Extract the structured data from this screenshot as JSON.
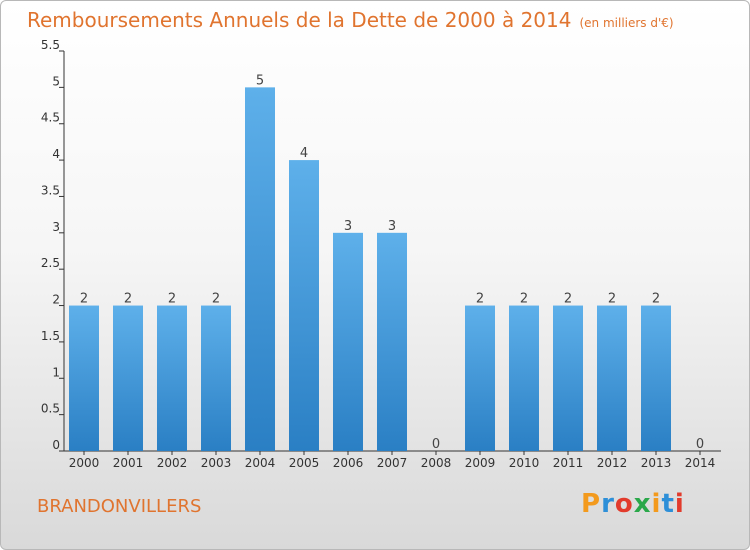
{
  "title": "Remboursements Annuels de la Dette de 2000 à 2014",
  "unit": "(en milliers d'€)",
  "caption": "BRANDONVILLERS",
  "logo_text": "Proxiti",
  "colors": {
    "title": "#e0742f",
    "bar_top": "#5eb0ea",
    "bar_bottom": "#2a7fc4",
    "logo": [
      "#f39a1d",
      "#2d8fd8",
      "#e23b2c",
      "#2aa84a",
      "#f39a1d",
      "#2d8fd8",
      "#e23b2c"
    ]
  },
  "chart_data": {
    "type": "bar",
    "categories": [
      "2000",
      "2001",
      "2002",
      "2003",
      "2004",
      "2005",
      "2006",
      "2007",
      "2008",
      "2009",
      "2010",
      "2011",
      "2012",
      "2013",
      "2014"
    ],
    "values": [
      2,
      2,
      2,
      2,
      5,
      4,
      3,
      3,
      0,
      2,
      2,
      2,
      2,
      2,
      0
    ],
    "data_labels": [
      "2",
      "2",
      "2",
      "2",
      "5",
      "4",
      "3",
      "3",
      "0",
      "2",
      "2",
      "2",
      "2",
      "2",
      "0"
    ],
    "yticks": [
      "0",
      "0.5",
      "1",
      "1.5",
      "2",
      "2.5",
      "3",
      "3.5",
      "4",
      "4.5",
      "5",
      "5.5"
    ],
    "ylim": [
      0,
      5.5
    ],
    "grid": false,
    "legend": "none"
  }
}
